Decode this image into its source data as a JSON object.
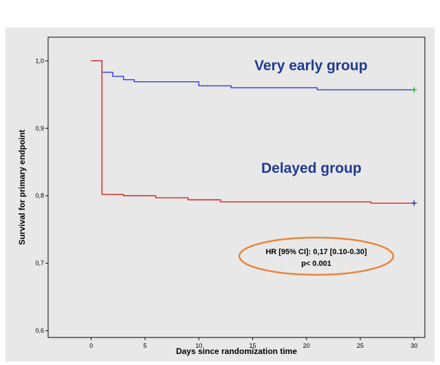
{
  "chart_data": {
    "type": "line",
    "xlabel": "Days since randomization time",
    "ylabel": "Survival for primary endpoint",
    "xlim": [
      -4,
      31
    ],
    "ylim": [
      0.59,
      1.035
    ],
    "x_ticks": [
      0,
      5,
      10,
      15,
      20,
      25,
      30
    ],
    "x_tick_labels": [
      "0",
      "5",
      "10",
      "15",
      "20",
      "25",
      "30"
    ],
    "y_ticks": [
      0.6,
      0.7,
      0.8,
      0.9,
      1.0
    ],
    "y_tick_labels": [
      "0,6",
      "0,7",
      "0,8",
      "0,9",
      "1,0"
    ],
    "grid": false,
    "series": [
      {
        "name": "Very early group",
        "color": "#3333ff",
        "label_color": "#1f3a93",
        "step": true,
        "censor_color": "#22aa22",
        "x": [
          0,
          1,
          2,
          3,
          4,
          10,
          13,
          21,
          30
        ],
        "y": [
          1.0,
          0.983,
          0.977,
          0.972,
          0.969,
          0.963,
          0.96,
          0.957,
          0.957
        ]
      },
      {
        "name": "Delayed group",
        "color": "#e02020",
        "label_color": "#1f3a93",
        "step": true,
        "censor_color": "#2233aa",
        "x": [
          0,
          1,
          3,
          6,
          9,
          12,
          26,
          30
        ],
        "y": [
          1.0,
          0.802,
          0.8,
          0.797,
          0.794,
          0.791,
          0.789,
          0.789
        ]
      }
    ],
    "annotation": {
      "line1": "HR [95% CI]: 0,17 [0.10-0.30]",
      "line2": "p< 0.001",
      "outline_color": "#e8843a"
    }
  }
}
